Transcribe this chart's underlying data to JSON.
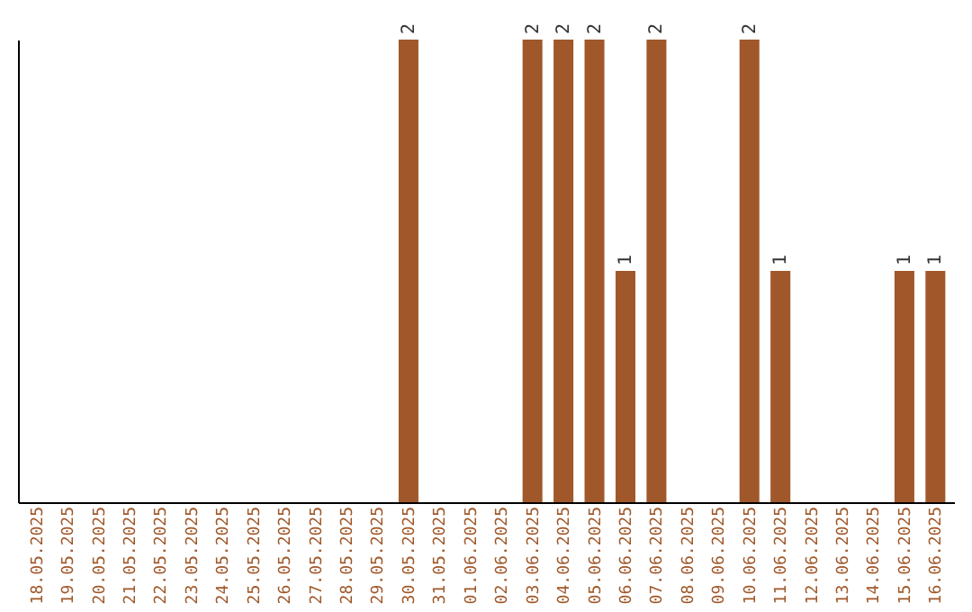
{
  "chart_data": {
    "type": "bar",
    "categories": [
      "18.05.2025",
      "19.05.2025",
      "20.05.2025",
      "21.05.2025",
      "22.05.2025",
      "23.05.2025",
      "24.05.2025",
      "25.05.2025",
      "26.05.2025",
      "27.05.2025",
      "28.05.2025",
      "29.05.2025",
      "30.05.2025",
      "31.05.2025",
      "01.06.2025",
      "02.06.2025",
      "03.06.2025",
      "04.06.2025",
      "05.06.2025",
      "06.06.2025",
      "07.06.2025",
      "08.06.2025",
      "09.06.2025",
      "10.06.2025",
      "11.06.2025",
      "12.06.2025",
      "13.06.2025",
      "14.06.2025",
      "15.06.2025",
      "16.06.2025"
    ],
    "values": [
      null,
      null,
      null,
      null,
      null,
      null,
      null,
      null,
      null,
      null,
      null,
      null,
      2,
      null,
      null,
      null,
      2,
      2,
      2,
      1,
      2,
      null,
      null,
      2,
      1,
      null,
      null,
      null,
      1,
      1
    ],
    "data_labels": true,
    "color": "#a0582a",
    "tick_labels": "x"
  }
}
